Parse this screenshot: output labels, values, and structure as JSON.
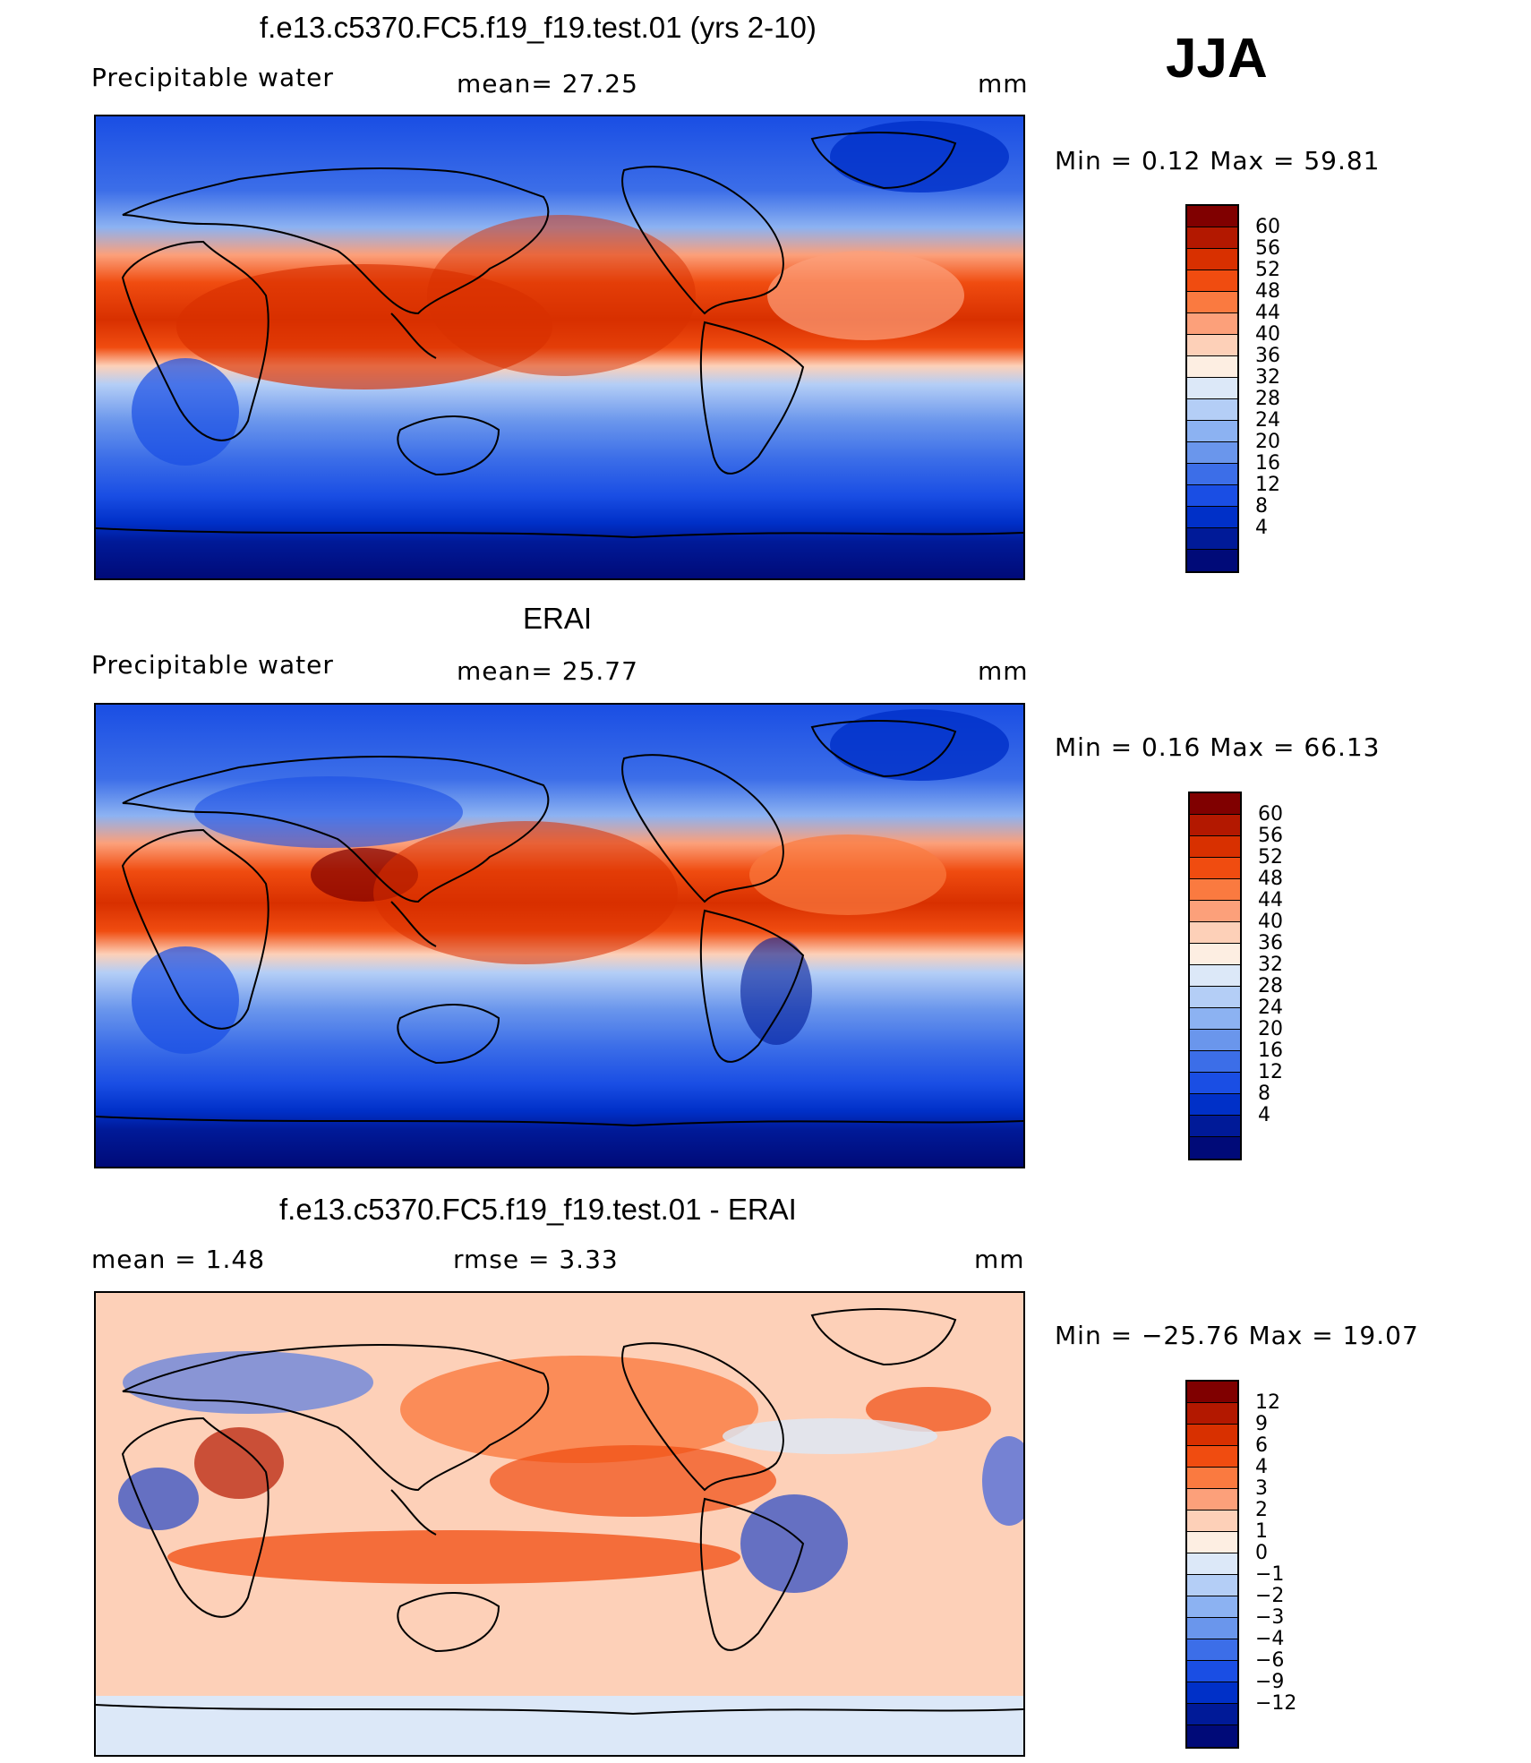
{
  "season": "JJA",
  "panels": [
    {
      "id": "model",
      "title": "f.e13.c5370.FC5.f19_f19.test.01 (yrs 2-10)",
      "left_label": "Precipitable  water",
      "stat_text": "mean=   27.25",
      "units": "mm",
      "minmax_text": "Min  =     0.12  Max  =     59.81",
      "levels": [
        "60",
        "56",
        "52",
        "48",
        "44",
        "40",
        "36",
        "32",
        "28",
        "24",
        "20",
        "16",
        "12",
        "8",
        "4"
      ],
      "colors": [
        "#800000",
        "#b31800",
        "#d83000",
        "#f04c10",
        "#fa7a40",
        "#fca07a",
        "#fdd0b8",
        "#fdeee2",
        "#dce8f8",
        "#b4cef6",
        "#8cb2f2",
        "#6a96ec",
        "#3c6ee8",
        "#1a4ee4",
        "#0030c8",
        "#001a98",
        "#000a78"
      ],
      "tint": "#ffe0cc"
    },
    {
      "id": "obs",
      "title": "ERAI",
      "left_label": "Precipitable  water",
      "stat_text": "mean=   25.77",
      "units": "mm",
      "minmax_text": "Min  =     0.16  Max  =     66.13",
      "levels": [
        "60",
        "56",
        "52",
        "48",
        "44",
        "40",
        "36",
        "32",
        "28",
        "24",
        "20",
        "16",
        "12",
        "8",
        "4"
      ],
      "colors": [
        "#800000",
        "#b31800",
        "#d83000",
        "#f04c10",
        "#fa7a40",
        "#fca07a",
        "#fdd0b8",
        "#fdeee2",
        "#dce8f8",
        "#b4cef6",
        "#8cb2f2",
        "#6a96ec",
        "#3c6ee8",
        "#1a4ee4",
        "#0030c8",
        "#001a98",
        "#000a78"
      ],
      "tint": "#ffe0cc"
    },
    {
      "id": "diff",
      "title": "f.e13.c5370.FC5.f19_f19.test.01 - ERAI",
      "left_label": "mean  =     1.48",
      "stat_text": "rmse  =     3.33",
      "units": "mm",
      "minmax_text": "Min  = −25.76  Max  =     19.07",
      "levels": [
        "12",
        "9",
        "6",
        "4",
        "3",
        "2",
        "1",
        "0",
        "−1",
        "−2",
        "−3",
        "−4",
        "−6",
        "−9",
        "−12"
      ],
      "colors": [
        "#800000",
        "#b31800",
        "#d83000",
        "#f04c10",
        "#fa7a40",
        "#fca07a",
        "#fdd0b8",
        "#fdeee2",
        "#dce8f8",
        "#b4cef6",
        "#8cb2f2",
        "#6a96ec",
        "#3c6ee8",
        "#1a4ee4",
        "#0030c8",
        "#001a98",
        "#000a78"
      ],
      "tint": "#fde4d2"
    }
  ]
}
